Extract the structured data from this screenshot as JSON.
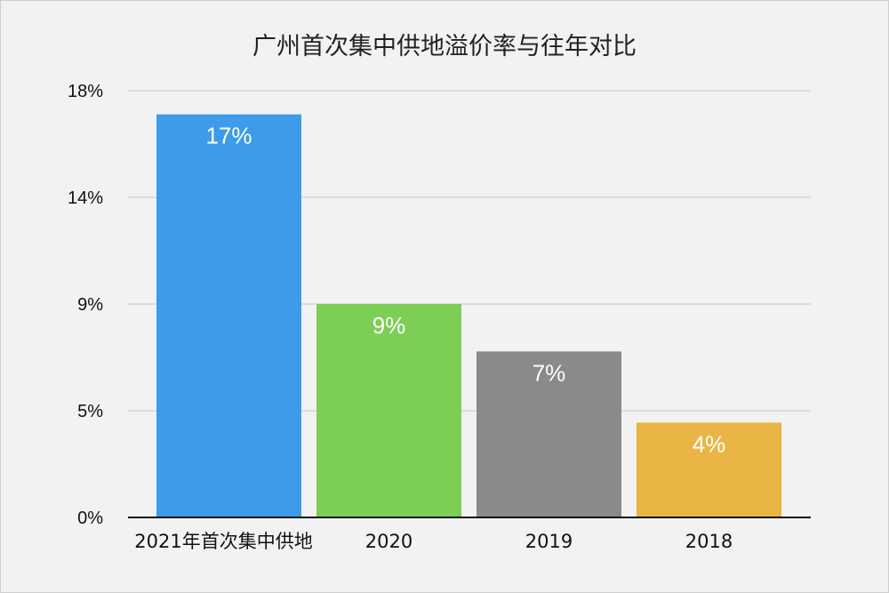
{
  "chart_data": {
    "type": "bar",
    "title": "广州首次集中供地溢价率与往年对比",
    "categories": [
      "2021年首次集中供地",
      "2020",
      "2019",
      "2018"
    ],
    "values": [
      17,
      9,
      7,
      4
    ],
    "value_labels": [
      "17%",
      "9%",
      "7%",
      "4%"
    ],
    "colors": [
      "#3d9be9",
      "#7dce55",
      "#8a8a8a",
      "#e9b545"
    ],
    "y_ticks": [
      "0%",
      "5%",
      "9%",
      "14%",
      "18%"
    ],
    "ylim": [
      0,
      18
    ],
    "grid": true,
    "legend": "none"
  }
}
